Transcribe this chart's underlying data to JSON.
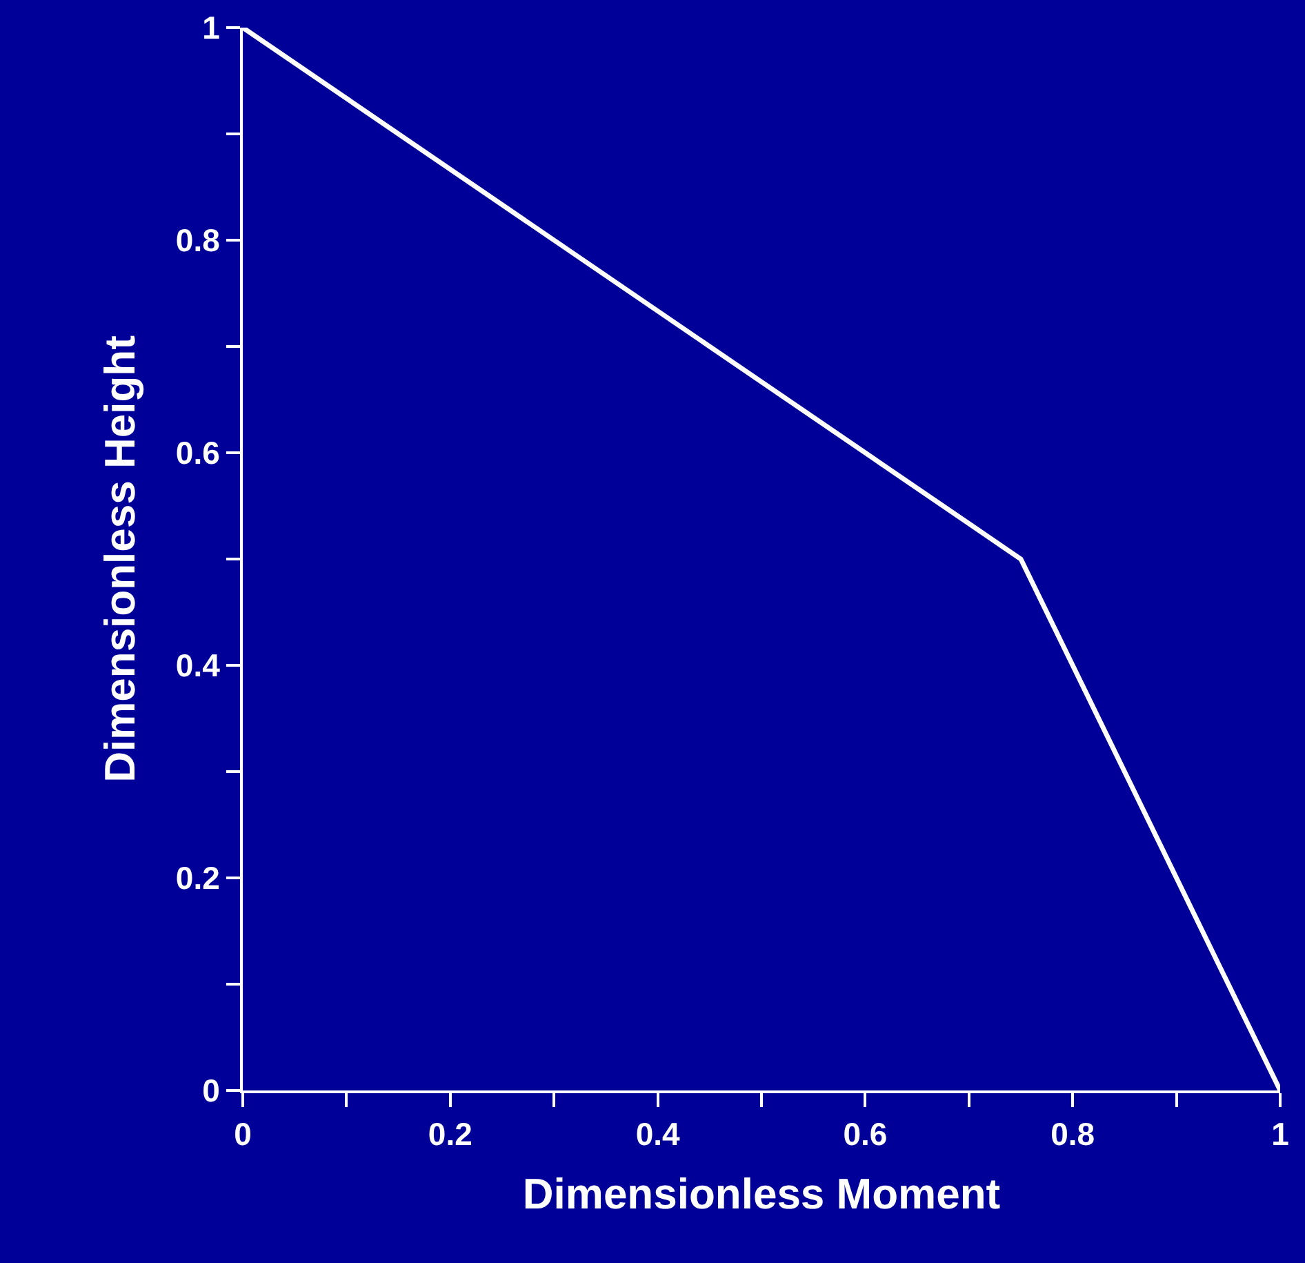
{
  "chart_data": {
    "type": "line",
    "xlabel": "Dimensionless Moment",
    "ylabel": "Dimensionless Height",
    "x": [
      0,
      0.75,
      1
    ],
    "series": [
      {
        "color": "#ffffff",
        "values": [
          1,
          0.5,
          0
        ]
      }
    ],
    "xlim": [
      0,
      1
    ],
    "ylim": [
      0,
      1
    ],
    "xticks": [
      0,
      {
        "value": 0.1,
        "label": null
      },
      0.2,
      {
        "value": 0.3,
        "label": null
      },
      0.4,
      {
        "value": 0.5,
        "label": null
      },
      0.6,
      {
        "value": 0.7,
        "label": null
      },
      0.8,
      {
        "value": 0.9,
        "label": null
      },
      1
    ],
    "yticks": [
      0,
      {
        "value": 0.1,
        "label": null
      },
      0.2,
      {
        "value": 0.3,
        "label": null
      },
      0.4,
      {
        "value": 0.5,
        "label": null
      },
      0.6,
      {
        "value": 0.7,
        "label": null
      },
      0.8,
      {
        "value": 0.9,
        "label": null
      },
      1
    ],
    "grid": false,
    "marker": "none",
    "line_style": "solid"
  }
}
